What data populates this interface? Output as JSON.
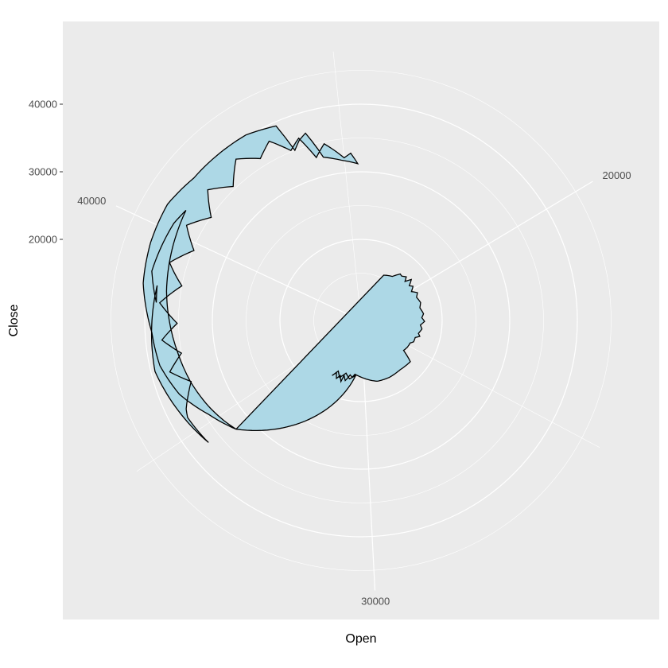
{
  "chart_data": {
    "type": "area",
    "coord": "polar",
    "xlabel": "Open",
    "ylabel": "Close",
    "theta_range": [
      15000,
      45500
    ],
    "r_range": [
      8000,
      48000
    ],
    "angular_ticks": [
      20000,
      30000,
      40000
    ],
    "angular_tick_labels": [
      "20000",
      "30000",
      "40000"
    ],
    "angular_minor_ticks": [
      25000,
      35000,
      45000
    ],
    "radial_ticks": [
      20000,
      30000,
      40000
    ],
    "radial_tick_labels": [
      "20000",
      "30000",
      "40000"
    ],
    "radial_minor_ticks": [
      15000,
      25000,
      35000,
      45000
    ],
    "grid": true,
    "colors": {
      "panel_background": "#ebebeb",
      "grid_line": "#ffffff",
      "fill": "#add8e6",
      "outline": "#000000"
    },
    "series": [
      {
        "values": [
          [
            17250,
            15500
          ],
          [
            18000,
            16000
          ],
          [
            18400,
            17000
          ],
          [
            18600,
            16900
          ],
          [
            18900,
            17300
          ],
          [
            19100,
            16700
          ],
          [
            19300,
            17600
          ],
          [
            19600,
            16800
          ],
          [
            19800,
            17200
          ],
          [
            20100,
            16600
          ],
          [
            20400,
            17300
          ],
          [
            20700,
            16900
          ],
          [
            21200,
            17200
          ],
          [
            21600,
            16900
          ],
          [
            22100,
            17300
          ],
          [
            22400,
            17000
          ],
          [
            22700,
            17400
          ],
          [
            23000,
            16800
          ],
          [
            23300,
            17100
          ],
          [
            23700,
            16700
          ],
          [
            23900,
            17000
          ],
          [
            24100,
            16400
          ],
          [
            24500,
            16400
          ],
          [
            24700,
            16000
          ],
          [
            25200,
            15900
          ],
          [
            25600,
            15700
          ],
          [
            26000,
            17500
          ],
          [
            27000,
            17300
          ],
          [
            28000,
            17400
          ],
          [
            29000,
            17300
          ],
          [
            30500,
            16200
          ],
          [
            30800,
            16000
          ],
          [
            31000,
            16500
          ],
          [
            31200,
            16200
          ],
          [
            31500,
            17200
          ],
          [
            31700,
            16500
          ],
          [
            31800,
            17500
          ],
          [
            32000,
            16700
          ],
          [
            32200,
            17300
          ],
          [
            32400,
            16500
          ],
          [
            32600,
            17200
          ],
          [
            32300,
            16200
          ],
          [
            32000,
            17000
          ],
          [
            31600,
            16100
          ],
          [
            31200,
            16800
          ],
          [
            30900,
            16400
          ],
          [
            30700,
            16100
          ],
          [
            34400,
            32500
          ],
          [
            35200,
            34500
          ],
          [
            36000,
            37000
          ],
          [
            36800,
            38500
          ],
          [
            37600,
            39000
          ],
          [
            38700,
            40700
          ],
          [
            39600,
            41200
          ],
          [
            40500,
            41400
          ],
          [
            41300,
            40500
          ],
          [
            42100,
            40400
          ],
          [
            42800,
            40300
          ],
          [
            43500,
            39400
          ],
          [
            43700,
            35000
          ],
          [
            43900,
            36200
          ],
          [
            44100,
            36900
          ],
          [
            44400,
            32800
          ],
          [
            44900,
            31900
          ],
          [
            45400,
            31200
          ],
          [
            45200,
            32800
          ],
          [
            45000,
            32200
          ],
          [
            44500,
            34700
          ],
          [
            44200,
            33000
          ],
          [
            43900,
            36500
          ],
          [
            43600,
            35200
          ],
          [
            43200,
            37800
          ],
          [
            42800,
            36200
          ],
          [
            42300,
            38200
          ],
          [
            41800,
            35400
          ],
          [
            41300,
            37800
          ],
          [
            40800,
            34900
          ],
          [
            40300,
            37400
          ],
          [
            39800,
            34800
          ],
          [
            39300,
            37600
          ],
          [
            38800,
            35000
          ],
          [
            38300,
            37900
          ],
          [
            37800,
            35200
          ],
          [
            37400,
            37600
          ],
          [
            37000,
            35000
          ],
          [
            36600,
            37300
          ],
          [
            36200,
            34700
          ],
          [
            35600,
            37000
          ],
          [
            35400,
            37400
          ],
          [
            34600,
            36900
          ],
          [
            36700,
            39400
          ],
          [
            38700,
            38600
          ],
          [
            38300,
            38400
          ],
          [
            39000,
            39800
          ],
          [
            40200,
            39200
          ],
          [
            40600,
            38600
          ],
          [
            39400,
            37700
          ],
          [
            38600,
            37100
          ],
          [
            37800,
            36300
          ],
          [
            37000,
            35500
          ],
          [
            36200,
            34800
          ],
          [
            35400,
            33900
          ],
          [
            34800,
            33100
          ],
          [
            34400,
            32500
          ]
        ]
      }
    ]
  }
}
